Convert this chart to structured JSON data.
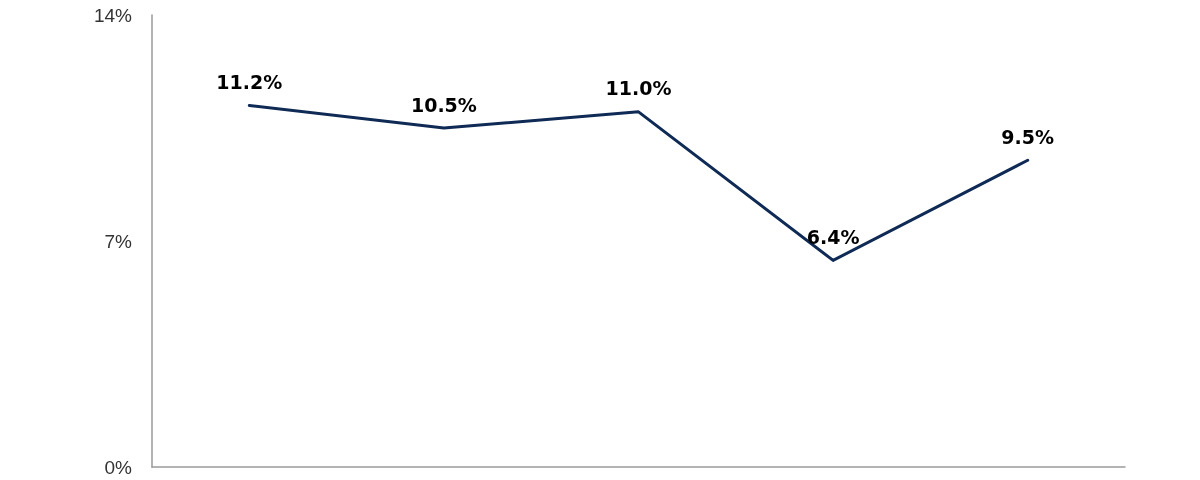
{
  "chart_data": {
    "type": "line",
    "categories": [
      null,
      null,
      null,
      null,
      null
    ],
    "series": [
      {
        "color": "#0e2a55",
        "values": [
          11.2,
          10.5,
          11.0,
          6.4,
          9.5
        ],
        "value_labels": [
          "11.2%",
          "10.5%",
          "11.0%",
          "6.4%",
          "9.5%"
        ]
      }
    ],
    "ylim": [
      0,
      14
    ],
    "yticks": [
      {
        "value": 0,
        "label": "0%"
      },
      {
        "value": 7,
        "label": "7%"
      },
      {
        "value": 14,
        "label": "14%"
      }
    ],
    "grid": false,
    "marker": "none",
    "line_style": "solid"
  }
}
